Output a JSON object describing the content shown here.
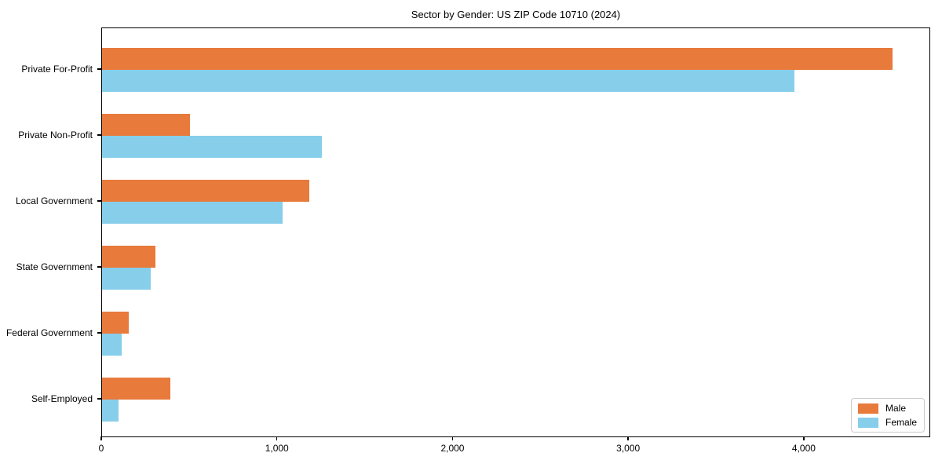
{
  "chart_data": {
    "type": "bar",
    "orientation": "horizontal",
    "title": "Sector by Gender: US ZIP Code 10710 (2024)",
    "categories": [
      "Private For-Profit",
      "Private Non-Profit",
      "Local Government",
      "State Government",
      "Federal Government",
      "Self-Employed"
    ],
    "series": [
      {
        "name": "Male",
        "color": "#E87A3C",
        "values": [
          4500,
          500,
          1180,
          305,
          150,
          390
        ]
      },
      {
        "name": "Female",
        "color": "#87CEEB",
        "values": [
          3940,
          1250,
          1030,
          275,
          110,
          95
        ]
      }
    ],
    "xlabel": "",
    "ylabel": "",
    "xlim": [
      0,
      4720
    ],
    "x_ticks": [
      0,
      1000,
      2000,
      3000,
      4000
    ],
    "x_tick_labels": [
      "0",
      "1,000",
      "2,000",
      "3,000",
      "4,000"
    ],
    "grid": false,
    "legend": {
      "position": "lower-right",
      "entries": [
        "Male",
        "Female"
      ]
    }
  }
}
